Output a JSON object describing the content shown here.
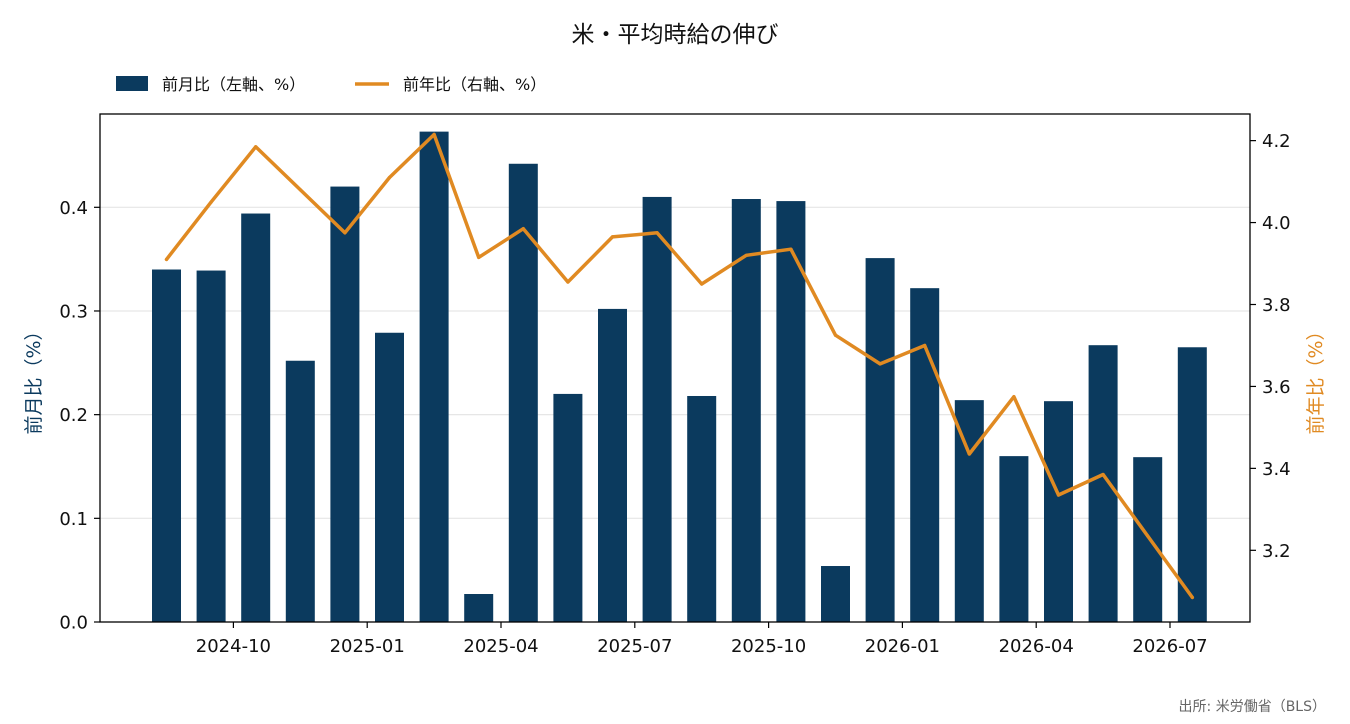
{
  "chart_data": {
    "type": "bar+line",
    "title": "米・平均時給の伸び",
    "source": "出所: 米労働省（BLS）",
    "legend": {
      "position": "top-left",
      "bar_label": "前月比（左軸、%）",
      "line_label": "前年比（右軸、%）"
    },
    "colors": {
      "bar": "#0b3a5e",
      "line": "#e08a22",
      "grid": "#e6e6e6",
      "axis": "#000000"
    },
    "x_tick_labels": [
      "2024-10",
      "2025-01",
      "2025-04",
      "2025-07",
      "2025-10",
      "2026-01",
      "2026-04",
      "2026-07"
    ],
    "x_tick_indices": [
      1.5,
      4.5,
      7.5,
      10.5,
      13.5,
      16.5,
      19.5,
      22.5
    ],
    "months": [
      "2024-09",
      "2024-10",
      "2024-11",
      "2024-12",
      "2025-01",
      "2025-02",
      "2025-03",
      "2025-04",
      "2025-05",
      "2025-06",
      "2025-07",
      "2025-08",
      "2025-09",
      "2025-10",
      "2025-11",
      "2025-12",
      "2026-01",
      "2026-02",
      "2026-03",
      "2026-04",
      "2026-05",
      "2026-06",
      "2026-07",
      "2026-08"
    ],
    "left_axis": {
      "label": "前月比（%）",
      "ylim": [
        0,
        0.49
      ],
      "ticks": [
        0.0,
        0.1,
        0.2,
        0.3,
        0.4
      ],
      "tick_labels": [
        "0.0",
        "0.1",
        "0.2",
        "0.3",
        "0.4"
      ],
      "grid": true
    },
    "right_axis": {
      "label": "前年比（%）",
      "ylim": [
        3.025,
        4.265
      ],
      "ticks": [
        3.2,
        3.4,
        3.6,
        3.8,
        4.0,
        4.2
      ],
      "tick_labels": [
        "3.2",
        "3.4",
        "3.6",
        "3.8",
        "4.0",
        "4.2"
      ]
    },
    "series": [
      {
        "name": "前月比（左軸、%）",
        "type": "bar",
        "axis": "left",
        "values": [
          0.34,
          0.339,
          0.394,
          0.252,
          0.42,
          0.279,
          0.473,
          0.027,
          0.442,
          0.22,
          0.302,
          0.41,
          0.218,
          0.408,
          0.406,
          0.054,
          0.351,
          0.322,
          0.214,
          0.16,
          0.213,
          0.267,
          0.159,
          0.265
        ]
      },
      {
        "name": "前年比（右軸、%）",
        "type": "line",
        "axis": "right",
        "values": [
          3.91,
          4.05,
          4.185,
          4.08,
          3.975,
          4.11,
          4.215,
          3.915,
          3.985,
          3.855,
          3.965,
          3.975,
          3.85,
          3.92,
          3.935,
          3.725,
          3.655,
          3.7,
          3.435,
          3.575,
          3.335,
          3.385,
          3.235,
          3.085
        ]
      }
    ]
  }
}
